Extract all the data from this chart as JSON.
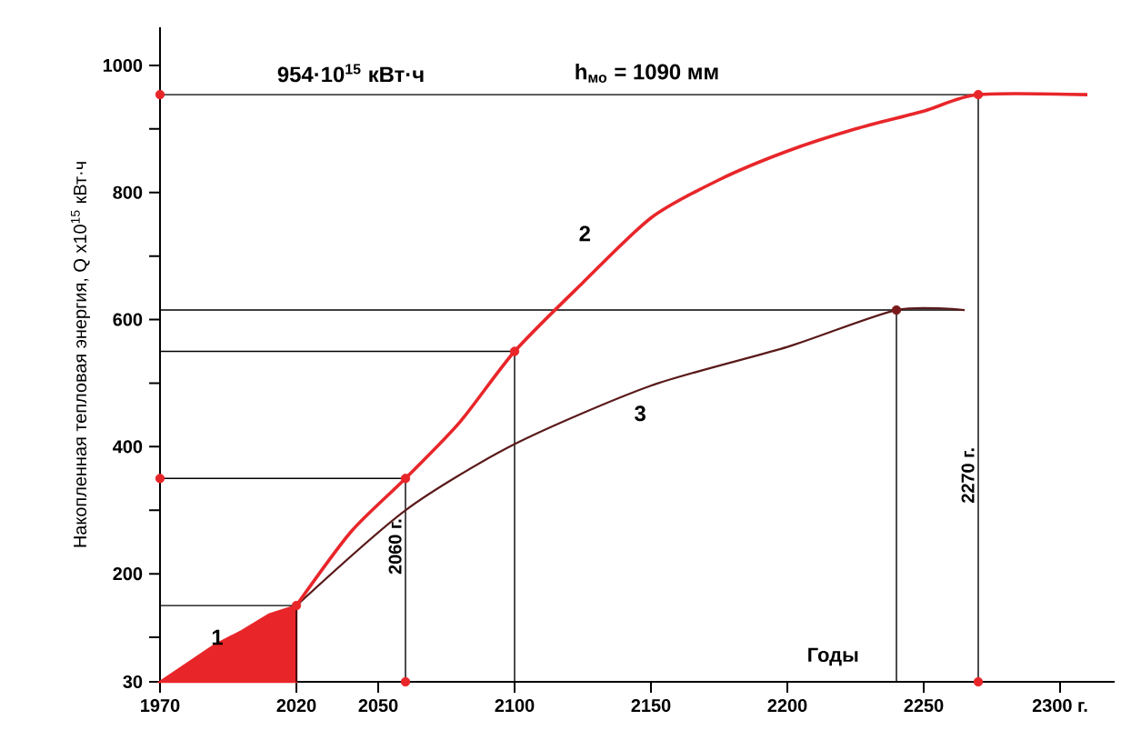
{
  "chart_data": {
    "type": "line",
    "xlabel": "Годы",
    "ylabel": "Накопленная тепловая энергия, Q x10$^{15}$ кВт·ч",
    "xlim": [
      1970,
      2320
    ],
    "ylim": [
      30,
      1060
    ],
    "xticks": [
      1970,
      2020,
      2050,
      2100,
      2150,
      2200,
      2250,
      {
        "value": 2300,
        "label": "2300 г."
      }
    ],
    "yticks": [
      30,
      {
        "value": 100,
        "label": null
      },
      200,
      {
        "value": 300,
        "label": null
      },
      400,
      {
        "value": 500,
        "label": null
      },
      600,
      {
        "value": 700,
        "label": null
      },
      800,
      {
        "value": 900,
        "label": null
      },
      1000
    ],
    "series": [
      {
        "type": "area",
        "color": "#e8262a",
        "x": [
          1970,
          1990,
          2000,
          2010,
          2020
        ],
        "values": [
          30,
          88,
          110,
          136,
          150
        ]
      },
      {
        "color": "#000000",
        "x": [
          1970,
          2020
        ],
        "values": [
          150,
          150
        ]
      },
      {
        "color": "#000000",
        "x": [
          2020,
          2020
        ],
        "values": [
          150,
          30
        ]
      },
      {
        "color": "#000000",
        "x": [
          1970,
          2060
        ],
        "values": [
          350,
          350
        ]
      },
      {
        "color": "#000000",
        "x": [
          2060,
          2060
        ],
        "values": [
          350,
          30
        ]
      },
      {
        "color": "#000000",
        "x": [
          1970,
          2100
        ],
        "values": [
          550,
          550
        ]
      },
      {
        "color": "#000000",
        "x": [
          2100,
          2100
        ],
        "values": [
          550,
          30
        ]
      },
      {
        "color": "#000000",
        "x": [
          1970,
          2265
        ],
        "values": [
          615,
          615
        ]
      },
      {
        "color": "#000000",
        "x": [
          2240,
          2240
        ],
        "values": [
          615,
          30
        ]
      },
      {
        "color": "#000000",
        "x": [
          1970,
          2270
        ],
        "values": [
          954,
          954
        ]
      },
      {
        "color": "#000000",
        "x": [
          2270,
          2270
        ],
        "values": [
          954,
          30
        ]
      },
      {
        "color": "#5a1a1a",
        "x": [
          2020,
          2060,
          2100,
          2150,
          2200,
          2240,
          2265
        ],
        "values": [
          150,
          300,
          404,
          496,
          557,
          615,
          615
        ]
      },
      {
        "color": "#e8262a",
        "x": [
          2020,
          2040,
          2060,
          2080,
          2100,
          2125,
          2150,
          2175,
          2200,
          2225,
          2250,
          2270,
          2310
        ],
        "values": [
          150,
          266,
          350,
          439,
          550,
          658,
          760,
          820,
          865,
          900,
          928,
          954,
          954
        ]
      },
      {
        "type": "scatter",
        "marker": "circle",
        "color": "#e8262a",
        "x": [
          1970,
          1970,
          2060,
          2270,
          2020,
          2060,
          2100,
          2270
        ],
        "values": [
          954,
          350,
          30,
          30,
          150,
          350,
          550,
          954
        ]
      },
      {
        "type": "scatter",
        "marker": "circle",
        "color": "#7a1a1a",
        "x": [
          2240
        ],
        "values": [
          615
        ]
      }
    ],
    "annotations": [
      "954·10$^{15}$ кВт·ч",
      "h$_{мо}$ = 1090 мм",
      {
        "text": "1",
        "x": 1991,
        "y": 100
      },
      "2",
      "3",
      {
        "text": "2060 г.",
        "x": 2060,
        "y": 243
      },
      {
        "text": "2270 г.",
        "x": 2270,
        "y": 355
      }
    ]
  }
}
